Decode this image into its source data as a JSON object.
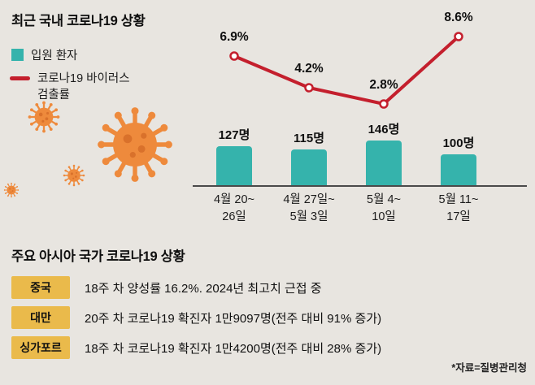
{
  "header": {
    "title": "최근 국내 코로나19 상황",
    "legend": {
      "bar_label": "입원 환자",
      "line_label_line1": "코로나19 바이러스",
      "line_label_line2": "검출률"
    }
  },
  "chart_data": {
    "type": "bar+line",
    "categories": [
      [
        "4월 20~",
        "26일"
      ],
      [
        "4월 27일~",
        "5월 3일"
      ],
      [
        "5월 4~",
        "10일"
      ],
      [
        "5월 11~",
        "17일"
      ]
    ],
    "bar_series": {
      "name": "입원 환자",
      "unit": "명",
      "values": [
        127,
        115,
        146,
        100
      ],
      "labels": [
        "127명",
        "115명",
        "146명",
        "100명"
      ],
      "color": "#35b3ac"
    },
    "line_series": {
      "name": "코로나19 바이러스 검출률",
      "unit": "%",
      "values": [
        6.9,
        4.2,
        2.8,
        8.6
      ],
      "labels": [
        "6.9%",
        "4.2%",
        "2.8%",
        "8.6%"
      ],
      "color": "#c41f2d"
    },
    "ylim_bar": [
      0,
      160
    ],
    "ylim_line": [
      0,
      10
    ],
    "grid": false,
    "legend_position": "top-left"
  },
  "asia_section": {
    "title": "주요 아시아 국가 코로나19 상황",
    "rows": [
      {
        "country": "중국",
        "text": "18주 차 양성률 16.2%. 2024년 최고치 근접 중"
      },
      {
        "country": "대만",
        "text": "20주 차 코로나19 확진자 1만9097명(전주 대비 91% 증가)"
      },
      {
        "country": "싱가포르",
        "text": "18주 차 코로나19 확진자 1만4200명(전주 대비 28% 증가)"
      }
    ]
  },
  "footer": {
    "source": "*자료=질병관리청"
  },
  "colors": {
    "background": "#e8e5e0",
    "bar": "#35b3ac",
    "line": "#c41f2d",
    "virus": "#ee8a3c",
    "virus_dot": "#d9712b",
    "badge": "#eaba4b",
    "text": "#111111"
  }
}
